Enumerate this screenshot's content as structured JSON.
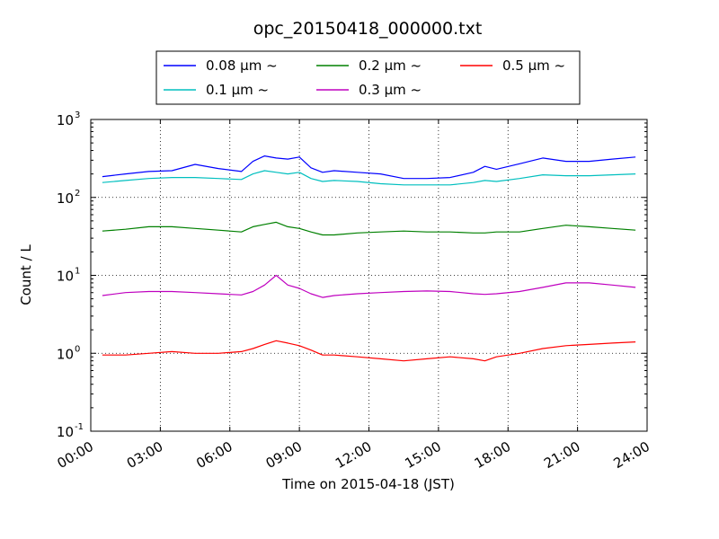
{
  "chart_data": {
    "type": "line",
    "title": "opc_20150418_000000.txt",
    "xlabel": "Time on 2015-04-18 (JST)",
    "ylabel": "Count / L",
    "y_scale": "log",
    "ylim": [
      0.1,
      1000
    ],
    "xlim": [
      "00:00",
      "24:00"
    ],
    "x_tick_labels": [
      "00:00",
      "03:00",
      "06:00",
      "09:00",
      "12:00",
      "15:00",
      "18:00",
      "21:00",
      "24:00"
    ],
    "y_tick_labels": [
      {
        "base": "10",
        "exp": "-1"
      },
      {
        "base": "10",
        "exp": "0"
      },
      {
        "base": "10",
        "exp": "1"
      },
      {
        "base": "10",
        "exp": "2"
      },
      {
        "base": "10",
        "exp": "3"
      }
    ],
    "grid": true,
    "legend_position": "top-center",
    "legend": [
      {
        "label": "0.08 μm ~",
        "color": "#0000ff"
      },
      {
        "label": "0.2 μm ~",
        "color": "#008000"
      },
      {
        "label": "0.5 μm ~",
        "color": "#ff0000"
      },
      {
        "label": "0.1 μm ~",
        "color": "#00bfbf"
      },
      {
        "label": "0.3 μm ~",
        "color": "#bf00bf"
      }
    ],
    "x_hours": [
      0.5,
      1.5,
      2.5,
      3.5,
      4.5,
      5.5,
      6.5,
      7.0,
      7.5,
      8.0,
      8.5,
      9.0,
      9.5,
      10.0,
      10.5,
      11.5,
      12.5,
      13.5,
      14.5,
      15.5,
      16.5,
      17.0,
      17.5,
      18.5,
      19.5,
      20.5,
      21.5,
      22.5,
      23.5
    ],
    "series": [
      {
        "name": "0.08 μm ~",
        "color": "#0000ff",
        "values": [
          185,
          200,
          215,
          220,
          265,
          235,
          215,
          290,
          340,
          320,
          310,
          330,
          240,
          210,
          220,
          210,
          200,
          175,
          175,
          180,
          210,
          250,
          230,
          270,
          320,
          290,
          290,
          310,
          330
        ]
      },
      {
        "name": "0.1 μm ~",
        "color": "#00bfbf",
        "values": [
          155,
          165,
          175,
          180,
          180,
          175,
          170,
          200,
          220,
          210,
          200,
          210,
          175,
          160,
          165,
          160,
          150,
          145,
          145,
          145,
          155,
          165,
          160,
          175,
          195,
          190,
          190,
          195,
          200
        ]
      },
      {
        "name": "0.2 μm ~",
        "color": "#008000",
        "values": [
          37,
          39,
          42,
          42,
          40,
          38,
          36,
          42,
          45,
          48,
          42,
          40,
          36,
          33,
          33,
          35,
          36,
          37,
          36,
          36,
          35,
          35,
          36,
          36,
          40,
          44,
          42,
          40,
          38
        ]
      },
      {
        "name": "0.3 μm ~",
        "color": "#bf00bf",
        "values": [
          5.5,
          6.0,
          6.2,
          6.2,
          6.0,
          5.8,
          5.6,
          6.2,
          7.5,
          10.0,
          7.5,
          6.8,
          5.8,
          5.2,
          5.5,
          5.8,
          6.0,
          6.2,
          6.3,
          6.2,
          5.8,
          5.7,
          5.8,
          6.2,
          7.0,
          8.0,
          8.0,
          7.5,
          7.0
        ]
      },
      {
        "name": "0.5 μm ~",
        "color": "#ff0000",
        "values": [
          0.95,
          0.95,
          1.0,
          1.05,
          1.0,
          1.0,
          1.05,
          1.15,
          1.3,
          1.45,
          1.35,
          1.25,
          1.1,
          0.95,
          0.95,
          0.9,
          0.85,
          0.8,
          0.85,
          0.9,
          0.85,
          0.8,
          0.9,
          1.0,
          1.15,
          1.25,
          1.3,
          1.35,
          1.4
        ]
      }
    ]
  }
}
